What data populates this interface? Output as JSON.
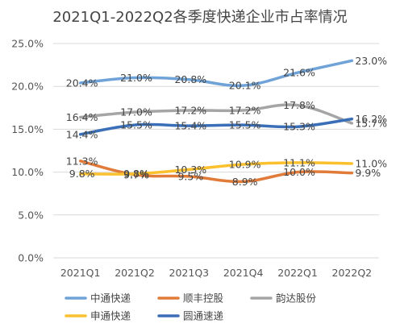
{
  "chart_data": {
    "type": "line",
    "title": "2021Q1-2022Q2各季度快递企业市占率情况",
    "xlabel": "",
    "ylabel": "",
    "categories": [
      "2021Q1",
      "2021Q2",
      "2021Q3",
      "2021Q4",
      "2022Q1",
      "2022Q2"
    ],
    "y_ticks": [
      "0.0%",
      "5.0%",
      "10.0%",
      "15.0%",
      "20.0%",
      "25.0%"
    ],
    "ylim": [
      0,
      25
    ],
    "grid": true,
    "legend_position": "bottom",
    "series": [
      {
        "name": "中通快递",
        "color": "#6fa3d8",
        "values": [
          20.4,
          21.0,
          20.8,
          20.1,
          21.6,
          23.0
        ],
        "labels": [
          "20.4%",
          "21.0%",
          "20.8%",
          "20.1%",
          "21.6%",
          "23.0%"
        ]
      },
      {
        "name": "顺丰控股",
        "color": "#e07b39",
        "values": [
          11.3,
          9.7,
          9.5,
          8.9,
          10.0,
          9.9
        ],
        "labels": [
          "11.3%",
          "9.7%",
          "9.5%",
          "8.9%",
          "10.0%",
          "9.9%"
        ]
      },
      {
        "name": "韵达股份",
        "color": "#a5a5a5",
        "values": [
          16.4,
          17.0,
          17.2,
          17.2,
          17.8,
          15.7
        ],
        "labels": [
          "16.4%",
          "17.0%",
          "17.2%",
          "17.2%",
          "17.8%",
          "15.7%"
        ]
      },
      {
        "name": "申通快递",
        "color": "#fbc02d",
        "values": [
          9.8,
          9.8,
          10.3,
          10.9,
          11.1,
          11.0
        ],
        "labels": [
          "9.8%",
          "9.8%",
          "10.3%",
          "10.9%",
          "11.1%",
          "11.0%"
        ]
      },
      {
        "name": "圆通速递",
        "color": "#3a6fb7",
        "values": [
          14.4,
          15.5,
          15.4,
          15.5,
          15.3,
          16.2
        ],
        "labels": [
          "14.4%",
          "15.5%",
          "15.4%",
          "15.5%",
          "15.3%",
          "16.2%"
        ]
      }
    ]
  }
}
